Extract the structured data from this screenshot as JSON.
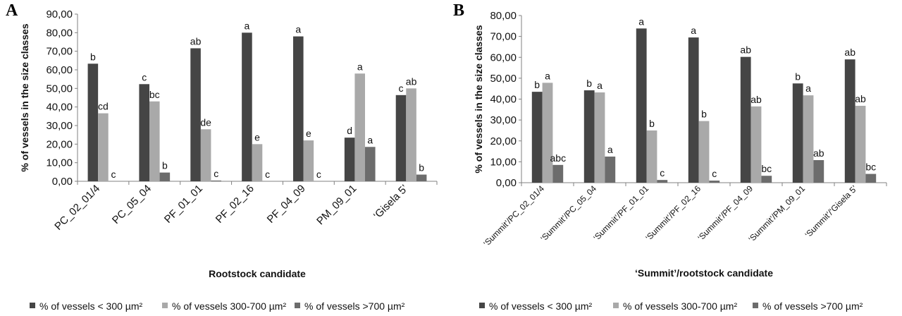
{
  "colors": {
    "series1": "#454545",
    "series2": "#a9a9a9",
    "series3": "#6c6c6c",
    "axis": "#808080",
    "text": "#111111"
  },
  "chart_data": [
    {
      "type": "bar",
      "panel": "A",
      "xlabel": "Rootstock candidate",
      "ylabel": "% of vessels in the size classes",
      "ylim": [
        0,
        90
      ],
      "yticks": [
        "0,00",
        "10,00",
        "20,00",
        "30,00",
        "40,00",
        "50,00",
        "60,00",
        "70,00",
        "80,00",
        "90,00"
      ],
      "categories": [
        "PC_02_01/4",
        "PC_05_04",
        "PF_01_01",
        "PF_02_16",
        "PF_04_09",
        "PM_09_01",
        "‘Gisela 5’"
      ],
      "series": [
        {
          "name": "% of vessels < 300 µm²",
          "values": [
            63.3,
            52.3,
            71.6,
            80.0,
            78.0,
            23.5,
            46.4
          ],
          "labels": [
            "b",
            "c",
            "ab",
            "a",
            "a",
            "d",
            "c"
          ]
        },
        {
          "name": "% of vessels 300-700 µm²",
          "values": [
            36.6,
            43.0,
            28.0,
            20.0,
            22.0,
            58.0,
            50.0
          ],
          "labels": [
            "cd",
            "bc",
            "de",
            "e",
            "e",
            "a",
            "ab"
          ]
        },
        {
          "name": "% of vessels >700 µm²",
          "values": [
            0.0,
            4.7,
            0.4,
            0.0,
            0.0,
            18.5,
            3.6
          ],
          "labels": [
            "c",
            "b",
            "c",
            "c",
            "c",
            "a",
            "b"
          ]
        }
      ],
      "legend": "bottom"
    },
    {
      "type": "bar",
      "panel": "B",
      "xlabel": "‘Summit’/rootstock  candidate",
      "ylabel": "% of vessels in the size classes",
      "ylim": [
        0,
        80
      ],
      "yticks": [
        "0,00",
        "10,00",
        "20,00",
        "30,00",
        "40,00",
        "50,00",
        "60,00",
        "70,00",
        "80,00"
      ],
      "categories": [
        "‘Summit’/PC_02_01/4",
        "‘Summit’/PC_05_04",
        "‘Summit’/PF_01_01",
        "‘Summit’/PF_02_16",
        "‘Summit’/PF_04_09",
        "‘Summit’/PM_09_01",
        "‘Summit’/‘Gisela 5’"
      ],
      "series": [
        {
          "name": "% of vessels < 300 µm²",
          "values": [
            43.5,
            44.2,
            73.8,
            69.5,
            60.2,
            47.5,
            59.0
          ],
          "labels": [
            "b",
            "b",
            "a",
            "a",
            "ab",
            "b",
            "ab"
          ]
        },
        {
          "name": "% of vessels 300-700 µm²",
          "values": [
            47.8,
            43.2,
            25.0,
            29.5,
            36.5,
            41.8,
            36.8
          ],
          "labels": [
            "a",
            "a",
            "b",
            "b",
            "ab",
            "a",
            "ab"
          ]
        },
        {
          "name": "% of vessels >700 µm²",
          "values": [
            8.5,
            12.5,
            1.3,
            1.0,
            3.3,
            10.8,
            4.2
          ],
          "labels": [
            "abc",
            "a",
            "c",
            "c",
            "bc",
            "ab",
            "bc"
          ]
        }
      ],
      "legend": "bottom"
    }
  ]
}
